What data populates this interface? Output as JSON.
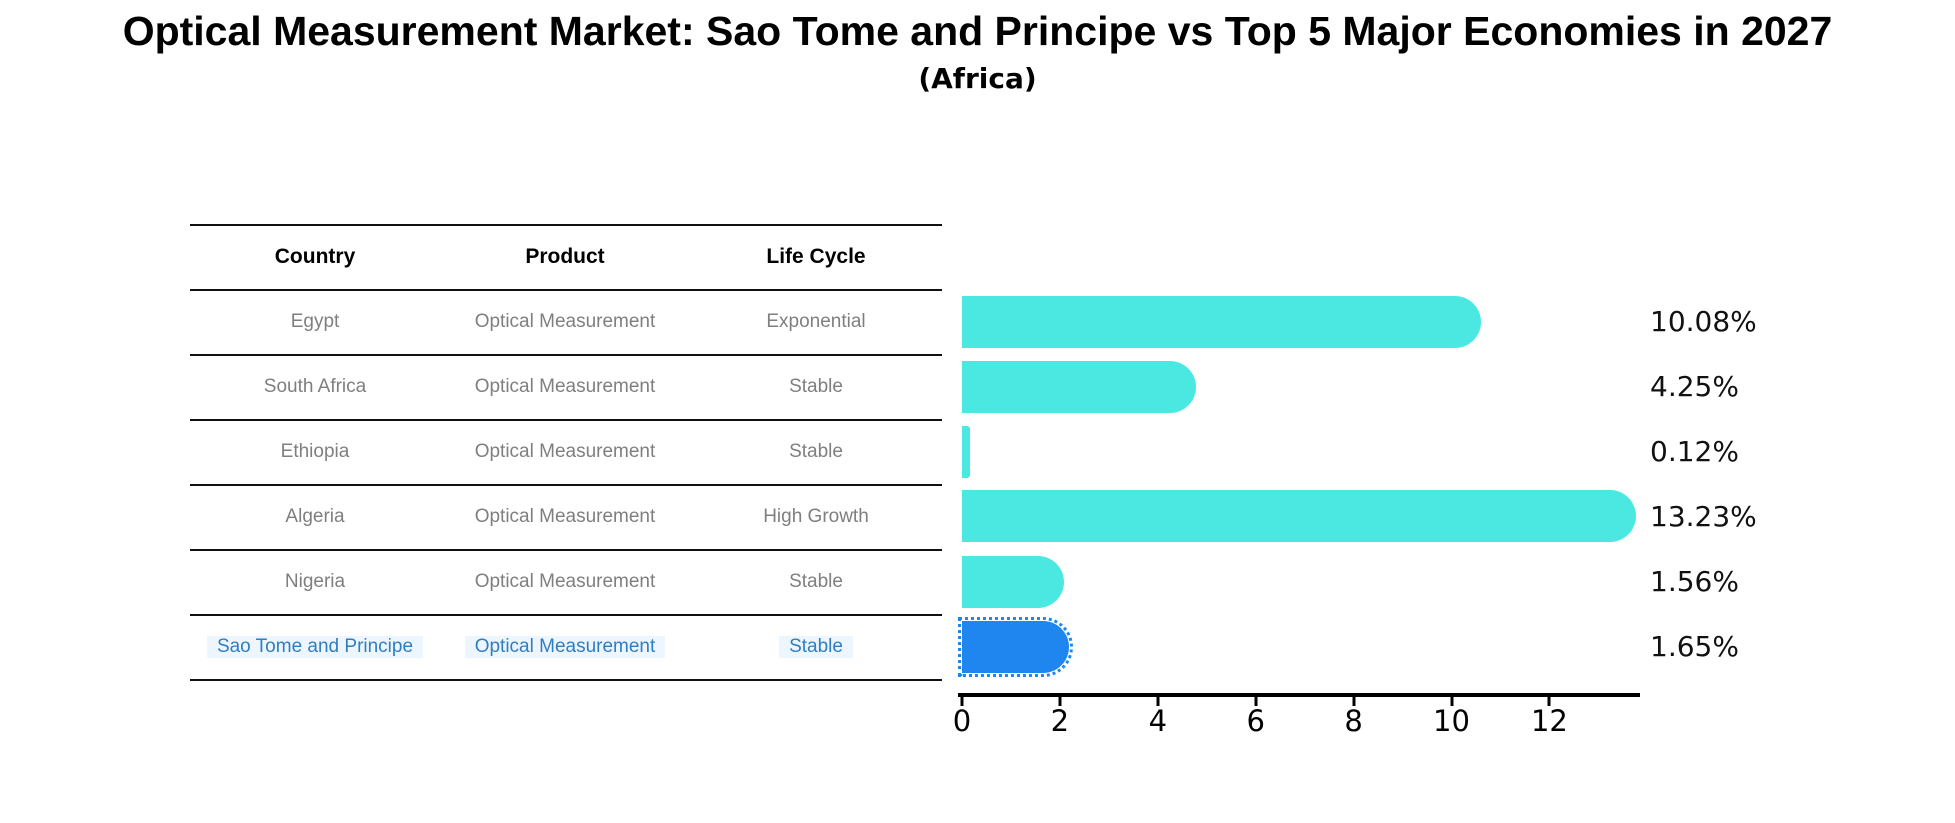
{
  "title": "Optical Measurement Market: Sao Tome and Principe vs Top 5 Major Economies in 2027",
  "subtitle": "(Africa)",
  "table": {
    "headers": [
      "Country",
      "Product",
      "Life Cycle"
    ],
    "rows": [
      {
        "country": "Egypt",
        "product": "Optical Measurement",
        "life_cycle": "Exponential"
      },
      {
        "country": "South Africa",
        "product": "Optical Measurement",
        "life_cycle": "Stable"
      },
      {
        "country": "Ethiopia",
        "product": "Optical Measurement",
        "life_cycle": "Stable"
      },
      {
        "country": "Algeria",
        "product": "Optical Measurement",
        "life_cycle": "High Growth"
      },
      {
        "country": "Nigeria",
        "product": "Optical Measurement",
        "life_cycle": "Stable"
      },
      {
        "country": "Sao Tome and Principe",
        "product": "Optical Measurement",
        "life_cycle": "Stable"
      }
    ],
    "highlight_row_index": 5
  },
  "chart_data": {
    "type": "bar",
    "orientation": "horizontal",
    "title": "Optical Measurement Market: Sao Tome and Principe vs Top 5 Major Economies in 2027",
    "subtitle": "(Africa)",
    "categories": [
      "Egypt",
      "South Africa",
      "Ethiopia",
      "Algeria",
      "Nigeria",
      "Sao Tome and Principe"
    ],
    "values": [
      10.08,
      4.25,
      0.12,
      13.23,
      1.56,
      1.65
    ],
    "value_labels": [
      "10.08%",
      "4.25%",
      "0.12%",
      "13.23%",
      "1.56%",
      "1.65%"
    ],
    "x_ticks": [
      0,
      2,
      4,
      6,
      8,
      10,
      12
    ],
    "x_tick_labels": [
      "0",
      "2",
      "4",
      "6",
      "8",
      "10",
      "12"
    ],
    "xlim": [
      0,
      13.85
    ],
    "grid": false,
    "legend": false,
    "bar_color": "#4BE8E2",
    "highlight_color": "#1E86EE",
    "highlight_index": 5,
    "highlight_bar_style": "dotted-outline"
  },
  "colors": {
    "background": "#FFFFFF",
    "bar": "#4BE8E2",
    "highlight_bar": "#1E86EE",
    "highlight_text": "#2F7EC3",
    "table_text": "#7F7F7F",
    "header_text": "#000000",
    "axis": "#000000"
  }
}
